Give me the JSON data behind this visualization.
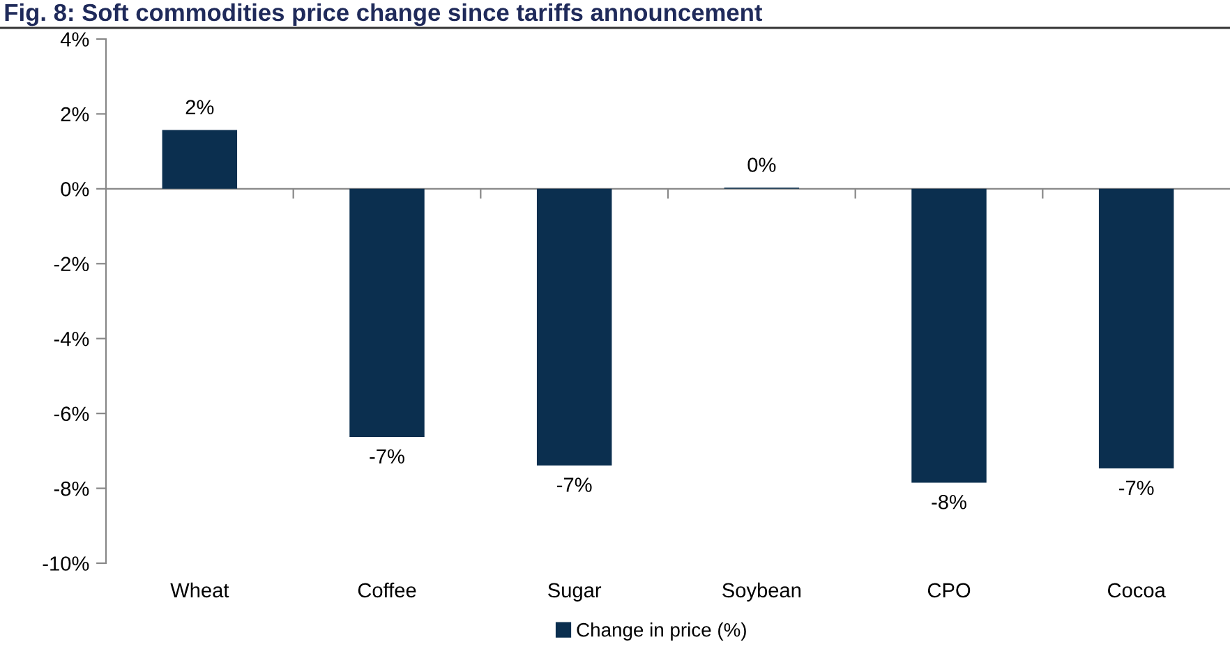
{
  "chart_data": {
    "type": "bar",
    "title": "Fig. 8: Soft commodities price change since tariffs announcement",
    "categories": [
      "Wheat",
      "Coffee",
      "Sugar",
      "Soybean",
      "CPO",
      "Cocoa"
    ],
    "series": [
      {
        "name": "Change in price (%)",
        "color": "#0b2f4f",
        "values": [
          1.57,
          -6.63,
          -7.39,
          0.03,
          -7.85,
          -7.47
        ],
        "value_labels": [
          "2%",
          "-7%",
          "-7%",
          "0%",
          "-8%",
          "-7%"
        ]
      }
    ],
    "ylim": [
      -10,
      4
    ],
    "yticks": [
      {
        "value": -10,
        "label": "-10%"
      },
      {
        "value": -8,
        "label": "-8%"
      },
      {
        "value": -6,
        "label": "-6%"
      },
      {
        "value": -4,
        "label": "-4%"
      },
      {
        "value": -2,
        "label": "-2%"
      },
      {
        "value": 0,
        "label": "0%"
      },
      {
        "value": 2,
        "label": "2%"
      },
      {
        "value": 4,
        "label": "4%"
      }
    ],
    "legend": "bottom"
  }
}
